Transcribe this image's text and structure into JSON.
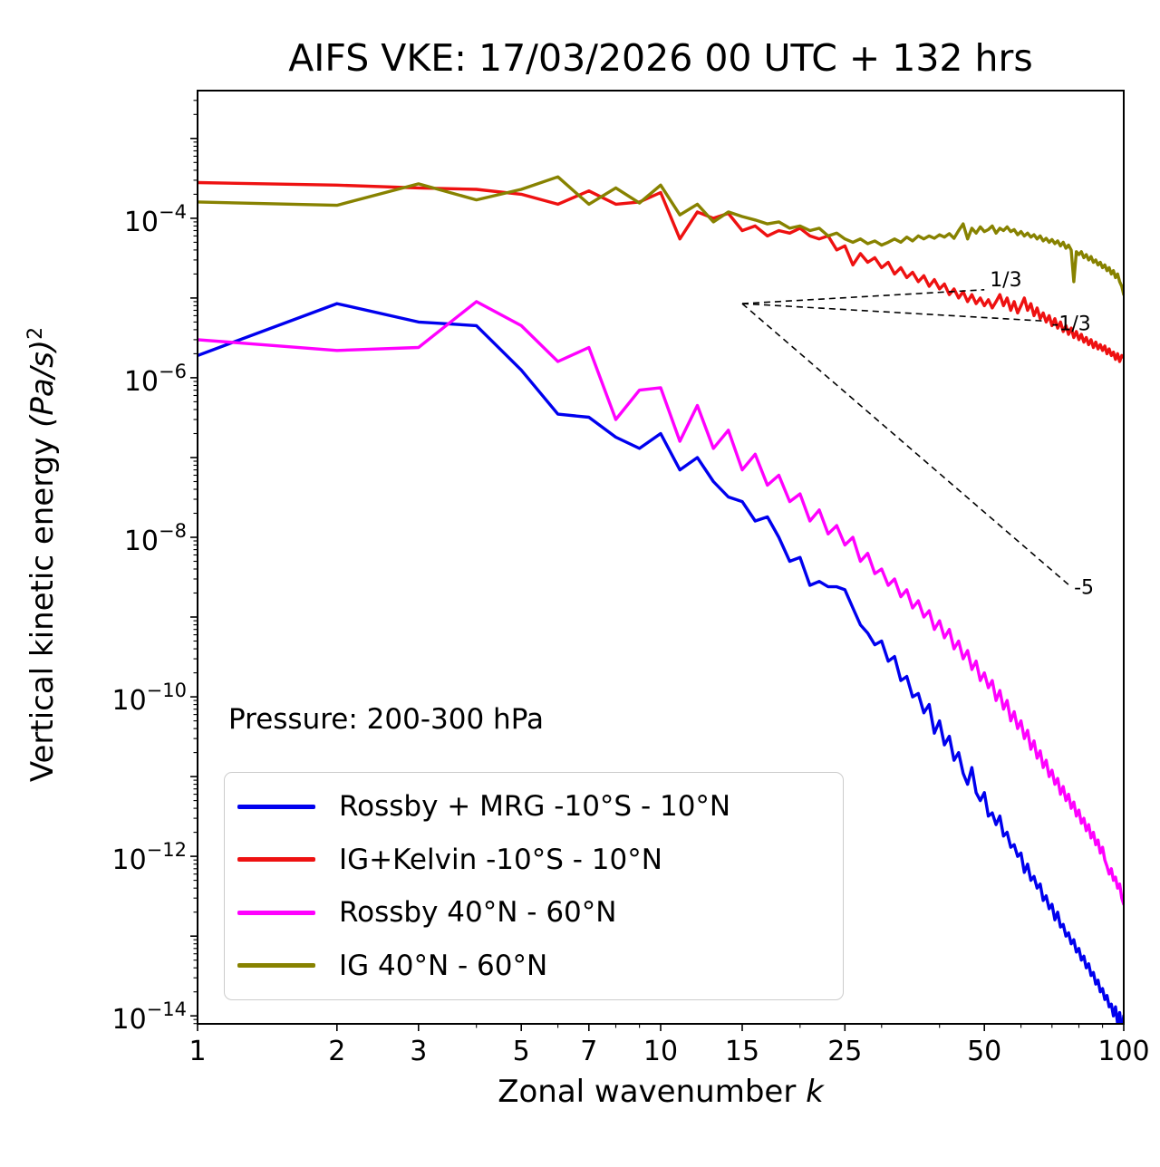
{
  "title": "AIFS VKE: 17/03/2026 00 UTC + 132 hrs",
  "annotation": "Pressure: 200-300 hPa",
  "axes": {
    "xlabel_prefix": "Zonal wavenumber ",
    "xlabel_var": "k",
    "ylabel_prefix": "Vertical kinetic energy ",
    "ylabel_units": "(Pa/s)",
    "ylabel_exponent": "2",
    "x_ticks": [
      1,
      2,
      3,
      5,
      7,
      10,
      15,
      25,
      50,
      100
    ],
    "y_tick_exponents": [
      -4,
      -6,
      -8,
      -10,
      -12,
      -14
    ]
  },
  "chart_data": {
    "type": "line",
    "x_scale": "log",
    "y_scale": "log",
    "xlim": [
      1,
      100
    ],
    "ylim_exponents": [
      -14.1,
      -2.4
    ],
    "grid": false,
    "legend_position": "lower left",
    "x": [
      1,
      2,
      3,
      4,
      5,
      6,
      7,
      8,
      9,
      10,
      11,
      12,
      13,
      14,
      15,
      16,
      17,
      18,
      19,
      20,
      21,
      22,
      23,
      24,
      25,
      26,
      27,
      28,
      29,
      30,
      31,
      32,
      33,
      34,
      35,
      36,
      37,
      38,
      39,
      40,
      41,
      42,
      43,
      44,
      45,
      46,
      47,
      48,
      49,
      50,
      51,
      52,
      53,
      54,
      55,
      56,
      57,
      58,
      59,
      60,
      61,
      62,
      63,
      64,
      65,
      66,
      67,
      68,
      69,
      70,
      71,
      72,
      73,
      74,
      75,
      76,
      77,
      78,
      79,
      80,
      81,
      82,
      83,
      84,
      85,
      86,
      87,
      88,
      89,
      90,
      91,
      92,
      93,
      94,
      95,
      96,
      97,
      98,
      99,
      100
    ],
    "series": [
      {
        "name": "Rossby + MRG -10°S - 10°N",
        "color": "#0000ee",
        "values": [
          1.9e-06,
          8.5e-06,
          5e-06,
          4.5e-06,
          1.25e-06,
          3.5e-07,
          3.2e-07,
          1.8e-07,
          1.3e-07,
          2e-07,
          7e-08,
          1e-07,
          5e-08,
          3.2e-08,
          2.8e-08,
          1.6e-08,
          1.8e-08,
          1e-08,
          5e-09,
          5.6e-09,
          2.5e-09,
          2.8e-09,
          2.4e-09,
          2.4e-09,
          2.2e-09,
          1.3e-09,
          8e-10,
          6.3e-10,
          4.5e-10,
          5e-10,
          2.8e-10,
          3.2e-10,
          1.6e-10,
          1.8e-10,
          1e-10,
          1.1e-10,
          6.3e-11,
          8e-11,
          3.5e-11,
          5e-11,
          2.5e-11,
          3.2e-11,
          1.6e-11,
          2e-11,
          1.1e-11,
          8e-12,
          1.3e-11,
          6.3e-12,
          5e-12,
          6.3e-12,
          3.2e-12,
          3.5e-12,
          2.5e-12,
          3.2e-12,
          1.8e-12,
          2e-12,
          1.3e-12,
          1.4e-12,
          1e-12,
          1.1e-12,
          6.3e-13,
          8e-13,
          5e-13,
          5.6e-13,
          4e-13,
          4.5e-13,
          2.8e-13,
          3.2e-13,
          2.2e-13,
          2.5e-13,
          1.6e-13,
          2e-13,
          1.3e-13,
          1.4e-13,
          1e-13,
          1.1e-13,
          8e-14,
          9e-14,
          6.3e-14,
          7e-14,
          5e-14,
          5.6e-14,
          4e-14,
          4.5e-14,
          3.2e-14,
          3.5e-14,
          2.5e-14,
          2.8e-14,
          2e-14,
          2.2e-14,
          1.6e-14,
          1.8e-14,
          1.3e-14,
          1.4e-14,
          1e-14,
          1.3e-14,
          8e-15,
          1.1e-14,
          6.3e-15,
          1e-14
        ]
      },
      {
        "name": "IG+Kelvin -10°S - 10°N",
        "color": "#ee1111",
        "values": [
          0.00028,
          0.00026,
          0.00024,
          0.00023,
          0.0002,
          0.00015,
          0.00022,
          0.00015,
          0.00016,
          0.00021,
          5.5e-05,
          0.00012,
          0.0001,
          0.000115,
          7e-05,
          8e-05,
          6e-05,
          7e-05,
          6.5e-05,
          7.5e-05,
          6e-05,
          5.5e-05,
          6e-05,
          4e-05,
          4.5e-05,
          2.6e-05,
          3.6e-05,
          2.8e-05,
          3.2e-05,
          2.4e-05,
          2.8e-05,
          2e-05,
          2.4e-05,
          1.8e-05,
          2.1e-05,
          1.6e-05,
          1.9e-05,
          1.4e-05,
          1.7e-05,
          1.3e-05,
          1.5e-05,
          1.1e-05,
          1.3e-05,
          1e-05,
          1.2e-05,
          9e-06,
          1.1e-05,
          8.5e-06,
          1e-05,
          8e-06,
          9.5e-06,
          7.5e-06,
          9e-06,
          1.1e-05,
          8e-06,
          1e-05,
          7e-06,
          9e-06,
          6.5e-06,
          8e-06,
          1e-05,
          7e-06,
          8.5e-06,
          6e-06,
          7.5e-06,
          5.5e-06,
          6.5e-06,
          5e-06,
          6e-06,
          4.5e-06,
          5.5e-06,
          4.2e-06,
          5e-06,
          3.8e-06,
          4.5e-06,
          3.5e-06,
          4.2e-06,
          3.2e-06,
          3.8e-06,
          3e-06,
          3.5e-06,
          2.8e-06,
          3.2e-06,
          2.6e-06,
          3e-06,
          2.4e-06,
          2.8e-06,
          2.3e-06,
          2.6e-06,
          2.2e-06,
          2.5e-06,
          2e-06,
          2.3e-06,
          1.9e-06,
          2.1e-06,
          1.7e-06,
          2e-06,
          1.6e-06,
          1.9e-06,
          1.8e-06
        ]
      },
      {
        "name": "Rossby 40°N - 60°N",
        "color": "#ff00ff",
        "values": [
          3e-06,
          2.2e-06,
          2.4e-06,
          9e-06,
          4.5e-06,
          1.6e-06,
          2.4e-06,
          3e-07,
          7e-07,
          7.5e-07,
          1.6e-07,
          4.5e-07,
          1.3e-07,
          2.2e-07,
          7e-08,
          1.1e-07,
          4.5e-08,
          6e-08,
          2.8e-08,
          3.5e-08,
          1.6e-08,
          2.2e-08,
          1.1e-08,
          1.4e-08,
          8e-09,
          1e-08,
          5e-09,
          6.3e-09,
          3.5e-09,
          4e-09,
          2.5e-09,
          3e-09,
          1.8e-09,
          2.2e-09,
          1.3e-09,
          1.6e-09,
          1e-09,
          1.2e-09,
          7e-10,
          9e-10,
          5.5e-10,
          7e-10,
          4e-10,
          5e-10,
          3e-10,
          3.8e-10,
          2.2e-10,
          2.8e-10,
          1.6e-10,
          2e-10,
          1.3e-10,
          1.6e-10,
          9e-11,
          1.2e-10,
          7e-11,
          9e-11,
          5e-11,
          6.5e-11,
          4e-11,
          5e-11,
          3e-11,
          3.8e-11,
          2.2e-11,
          2.8e-11,
          1.7e-11,
          2.1e-11,
          1.3e-11,
          1.6e-11,
          1e-11,
          1.2e-11,
          8e-12,
          9.5e-12,
          6e-12,
          7.5e-12,
          5e-12,
          6e-12,
          4e-12,
          4.8e-12,
          3.2e-12,
          3.8e-12,
          2.6e-12,
          3e-12,
          2.1e-12,
          2.5e-12,
          1.7e-12,
          2e-12,
          1.4e-12,
          1.6e-12,
          1.1e-12,
          1.3e-12,
          9e-13,
          7.5e-13,
          6e-13,
          7e-13,
          5e-13,
          5.5e-13,
          4e-13,
          4.5e-13,
          3e-13,
          2.5e-13
        ]
      },
      {
        "name": "IG 40°N - 60°N",
        "color": "#878200",
        "values": [
          0.00016,
          0.000145,
          0.00027,
          0.00017,
          0.00023,
          0.00033,
          0.00015,
          0.00024,
          0.000155,
          0.00026,
          0.00011,
          0.00015,
          9e-05,
          0.00012,
          0.000105,
          9.5e-05,
          8.5e-05,
          9e-05,
          7.5e-05,
          8e-05,
          7e-05,
          7.5e-05,
          6e-05,
          6.5e-05,
          5.5e-05,
          5e-05,
          5.5e-05,
          4.8e-05,
          5.2e-05,
          4.6e-05,
          5e-05,
          5.5e-05,
          5e-05,
          5.8e-05,
          5.2e-05,
          6e-05,
          5.5e-05,
          6e-05,
          5.6e-05,
          6.2e-05,
          5.8e-05,
          6.4e-05,
          5.6e-05,
          7e-05,
          8.5e-05,
          5.5e-05,
          7.5e-05,
          6.5e-05,
          7.8e-05,
          6.8e-05,
          7.2e-05,
          8e-05,
          6.5e-05,
          7.5e-05,
          7e-05,
          7.8e-05,
          6.8e-05,
          7.2e-05,
          6.2e-05,
          6.8e-05,
          6e-05,
          6.5e-05,
          5.8e-05,
          6.2e-05,
          5.5e-05,
          6e-05,
          5.2e-05,
          5.6e-05,
          5e-05,
          5.4e-05,
          4.8e-05,
          5.2e-05,
          4.5e-05,
          5e-05,
          4.2e-05,
          4.6e-05,
          4e-05,
          1.6e-05,
          3.8e-05,
          3.5e-05,
          3.8e-05,
          3.2e-05,
          3.5e-05,
          3e-05,
          3.3e-05,
          2.8e-05,
          3e-05,
          2.6e-05,
          2.8e-05,
          2.4e-05,
          2.6e-05,
          2.2e-05,
          2.4e-05,
          2e-05,
          2.2e-05,
          1.8e-05,
          2e-05,
          1.6e-05,
          1.4e-05,
          1.1e-05
        ]
      }
    ],
    "reference_lines": [
      {
        "label": "1/3",
        "slope": 0.3333,
        "start_k": 15,
        "start_value": 8.5e-06,
        "end_k": 50
      },
      {
        "label": "-1/3",
        "slope": -0.3333,
        "start_k": 15,
        "start_value": 8.5e-06,
        "end_k": 68
      },
      {
        "label": "-5",
        "slope": -5,
        "start_k": 15,
        "start_value": 8.5e-06,
        "end_k": 76
      }
    ]
  },
  "legend": {
    "items": [
      {
        "label": "Rossby + MRG -10°S - 10°N",
        "color": "#0000ee"
      },
      {
        "label": "IG+Kelvin -10°S - 10°N",
        "color": "#ee1111"
      },
      {
        "label": "Rossby 40°N - 60°N",
        "color": "#ff00ff"
      },
      {
        "label": "IG 40°N - 60°N",
        "color": "#878200"
      }
    ]
  }
}
